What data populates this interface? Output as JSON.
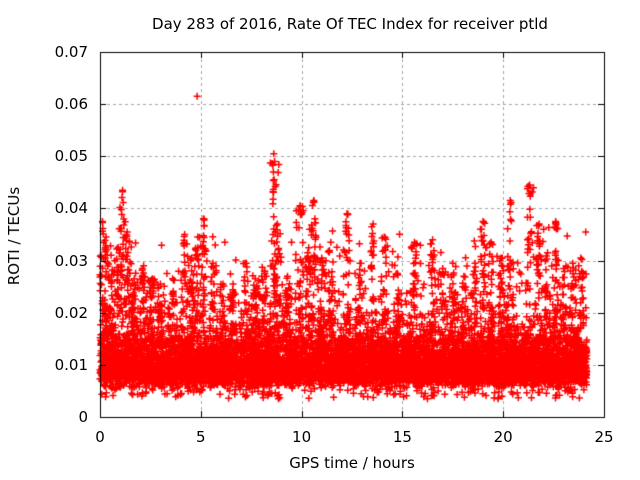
{
  "chart_data": {
    "type": "scatter",
    "title": "Day 283 of 2016, Rate Of TEC Index for receiver ptld",
    "xlabel": "GPS time / hours",
    "ylabel": "ROTI / TECUs",
    "xlim": [
      0,
      25
    ],
    "ylim": [
      0,
      0.07
    ],
    "xticks": [
      0,
      5,
      10,
      15,
      20,
      25
    ],
    "yticks": [
      0,
      0.01,
      0.02,
      0.03,
      0.04,
      0.05,
      0.06,
      0.07
    ],
    "grid": {
      "on": true,
      "color": "#a8a8a8",
      "dash": [
        3,
        3
      ]
    },
    "axis_color": "#000000",
    "background": "#ffffff",
    "legend": "none",
    "marker": {
      "shape": "plus",
      "color": "#ff0000",
      "size": 7,
      "line_width": 1.5
    },
    "data_model": {
      "seed": 28316,
      "x_range": [
        0,
        24.15
      ],
      "n_base": 8200,
      "base": {
        "floor": 0.0042,
        "scale": 0.006,
        "sigma": 0.45,
        "cap": 0.0365
      },
      "low_fraction": 0.025,
      "low_min": 0.0035,
      "low_span": 0.0035,
      "elevated_fraction": 0.22,
      "elevated_sigma": 0.75,
      "spike_x_jitter": 0.09,
      "spike_base": 0.0128,
      "spikes": [
        [
          0.12,
          0.0375
        ],
        [
          0.3,
          0.0345
        ],
        [
          0.55,
          0.031
        ],
        [
          0.9,
          0.0325
        ],
        [
          1.12,
          0.0435
        ],
        [
          1.35,
          0.0355
        ],
        [
          1.7,
          0.0265
        ],
        [
          2.1,
          0.0285
        ],
        [
          2.6,
          0.0265
        ],
        [
          3.0,
          0.0255
        ],
        [
          3.6,
          0.0265
        ],
        [
          4.2,
          0.035
        ],
        [
          4.55,
          0.0305
        ],
        [
          4.85,
          0.0345
        ],
        [
          5.15,
          0.038
        ],
        [
          5.6,
          0.0295
        ],
        [
          6.1,
          0.0255
        ],
        [
          6.6,
          0.0255
        ],
        [
          7.2,
          0.0295
        ],
        [
          7.7,
          0.0265
        ],
        [
          8.15,
          0.028
        ],
        [
          8.62,
          0.0505
        ],
        [
          8.8,
          0.037
        ],
        [
          9.3,
          0.027
        ],
        [
          9.92,
          0.0405
        ],
        [
          10.3,
          0.0315
        ],
        [
          10.6,
          0.0415
        ],
        [
          11.0,
          0.0305
        ],
        [
          11.45,
          0.0335
        ],
        [
          12.25,
          0.039
        ],
        [
          12.9,
          0.0295
        ],
        [
          13.55,
          0.037
        ],
        [
          14.1,
          0.0345
        ],
        [
          14.75,
          0.0275
        ],
        [
          15.6,
          0.0335
        ],
        [
          16.5,
          0.034
        ],
        [
          17.0,
          0.0285
        ],
        [
          17.5,
          0.0295
        ],
        [
          18.05,
          0.027
        ],
        [
          18.6,
          0.0295
        ],
        [
          19.0,
          0.0375
        ],
        [
          19.4,
          0.0335
        ],
        [
          19.9,
          0.0305
        ],
        [
          20.35,
          0.0415
        ],
        [
          21.3,
          0.0445
        ],
        [
          21.78,
          0.037
        ],
        [
          22.2,
          0.0315
        ],
        [
          22.6,
          0.0375
        ],
        [
          23.0,
          0.0285
        ],
        [
          23.45,
          0.0295
        ],
        [
          23.85,
          0.0305
        ]
      ],
      "outliers": [
        [
          4.82,
          0.0615
        ],
        [
          8.62,
          0.0505
        ],
        [
          8.66,
          0.049
        ],
        [
          8.6,
          0.047
        ],
        [
          8.64,
          0.0455
        ],
        [
          8.69,
          0.0442
        ],
        [
          8.58,
          0.0432
        ],
        [
          1.12,
          0.0432
        ],
        [
          1.09,
          0.0421
        ],
        [
          21.31,
          0.0445
        ],
        [
          21.35,
          0.0428
        ],
        [
          10.62,
          0.0413
        ],
        [
          20.36,
          0.0408
        ],
        [
          9.93,
          0.0404
        ],
        [
          12.27,
          0.0388
        ],
        [
          5.17,
          0.0378
        ],
        [
          19.02,
          0.0374
        ],
        [
          22.62,
          0.0372
        ],
        [
          0.13,
          0.0373
        ],
        [
          23.9,
          0.0302
        ]
      ]
    }
  }
}
